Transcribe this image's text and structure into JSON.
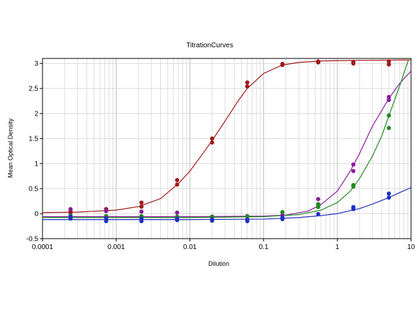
{
  "chart_data": {
    "type": "scatter",
    "title": "TitrationCurves",
    "xlabel": "Dilution",
    "ylabel": "Mean Optical Density",
    "x_scale": "log",
    "xlim": [
      0.0001,
      10
    ],
    "ylim": [
      -0.5,
      3.1
    ],
    "x_ticks": [
      {
        "value": 0.0001,
        "label": "0.0001"
      },
      {
        "value": 0.001,
        "label": "0.001"
      },
      {
        "value": 0.01,
        "label": "0.01"
      },
      {
        "value": 0.1,
        "label": "0.1"
      },
      {
        "value": 1,
        "label": "1"
      },
      {
        "value": 10,
        "label": "10"
      }
    ],
    "y_ticks": [
      {
        "value": -0.5,
        "label": "-0.5"
      },
      {
        "value": 0,
        "label": "0"
      },
      {
        "value": 0.5,
        "label": "0.5"
      },
      {
        "value": 1,
        "label": "1"
      },
      {
        "value": 1.5,
        "label": "1.5"
      },
      {
        "value": 2,
        "label": "2"
      },
      {
        "value": 2.5,
        "label": "2.5"
      },
      {
        "value": 3,
        "label": "3"
      }
    ],
    "grid": true,
    "series": [
      {
        "color": "#a01818",
        "points": [
          [
            0.00024,
            0.02
          ],
          [
            0.00024,
            0.05
          ],
          [
            0.00073,
            0.05
          ],
          [
            0.00073,
            0.09
          ],
          [
            0.0022,
            0.14
          ],
          [
            0.0022,
            0.22
          ],
          [
            0.0067,
            0.58
          ],
          [
            0.0067,
            0.67
          ],
          [
            0.02,
            1.42
          ],
          [
            0.02,
            1.5
          ],
          [
            0.06,
            2.54
          ],
          [
            0.06,
            2.62
          ],
          [
            0.18,
            2.97
          ],
          [
            0.18,
            2.99
          ],
          [
            0.55,
            3.02
          ],
          [
            0.55,
            3.04
          ],
          [
            1.65,
            3.0
          ],
          [
            1.65,
            3.03
          ],
          [
            5,
            2.98
          ],
          [
            5,
            3.04
          ]
        ],
        "curve": [
          [
            0.0001,
            0.02
          ],
          [
            0.0003,
            0.03
          ],
          [
            0.001,
            0.07
          ],
          [
            0.002,
            0.14
          ],
          [
            0.004,
            0.3
          ],
          [
            0.007,
            0.6
          ],
          [
            0.01,
            0.85
          ],
          [
            0.015,
            1.2
          ],
          [
            0.02,
            1.46
          ],
          [
            0.03,
            1.85
          ],
          [
            0.045,
            2.25
          ],
          [
            0.06,
            2.5
          ],
          [
            0.1,
            2.8
          ],
          [
            0.18,
            2.97
          ],
          [
            0.3,
            3.02
          ],
          [
            0.6,
            3.05
          ],
          [
            1.5,
            3.06
          ],
          [
            10,
            3.07
          ]
        ]
      },
      {
        "color": "#8b1a9c",
        "points": [
          [
            0.00024,
            0.09
          ],
          [
            0.00073,
            0.06
          ],
          [
            0.0022,
            0.04
          ],
          [
            0.0067,
            0.02
          ],
          [
            0.02,
            -0.06
          ],
          [
            0.06,
            -0.11
          ],
          [
            0.18,
            -0.03
          ],
          [
            0.55,
            0.17
          ],
          [
            0.55,
            0.29
          ],
          [
            1.65,
            0.85
          ],
          [
            1.65,
            0.98
          ],
          [
            5,
            2.27
          ],
          [
            5,
            2.33
          ]
        ],
        "curve": [
          [
            0.0001,
            -0.06
          ],
          [
            0.01,
            -0.06
          ],
          [
            0.1,
            -0.05
          ],
          [
            0.2,
            -0.03
          ],
          [
            0.4,
            0.05
          ],
          [
            0.6,
            0.18
          ],
          [
            1,
            0.45
          ],
          [
            1.5,
            0.85
          ],
          [
            2,
            1.2
          ],
          [
            3,
            1.75
          ],
          [
            5,
            2.3
          ],
          [
            7,
            2.6
          ],
          [
            10,
            2.85
          ]
        ]
      },
      {
        "color": "#1f8a1f",
        "points": [
          [
            0.00024,
            -0.04
          ],
          [
            0.00073,
            -0.05
          ],
          [
            0.0022,
            -0.05
          ],
          [
            0.0067,
            -0.06
          ],
          [
            0.02,
            -0.06
          ],
          [
            0.06,
            -0.05
          ],
          [
            0.18,
            0.03
          ],
          [
            0.55,
            0.13
          ],
          [
            0.55,
            0.19
          ],
          [
            1.65,
            0.54
          ],
          [
            1.65,
            0.57
          ],
          [
            5,
            1.71
          ],
          [
            5,
            1.96
          ]
        ],
        "curve": [
          [
            0.0001,
            -0.08
          ],
          [
            0.01,
            -0.08
          ],
          [
            0.1,
            -0.06
          ],
          [
            0.3,
            -0.02
          ],
          [
            0.6,
            0.07
          ],
          [
            1,
            0.22
          ],
          [
            1.5,
            0.45
          ],
          [
            2,
            0.7
          ],
          [
            3,
            1.15
          ],
          [
            4,
            1.55
          ],
          [
            5,
            1.95
          ],
          [
            7,
            2.55
          ],
          [
            9.2,
            3.07
          ]
        ]
      },
      {
        "color": "#1f2fbf",
        "points": [
          [
            0.00024,
            -0.06
          ],
          [
            0.00024,
            -0.1
          ],
          [
            0.00073,
            -0.09
          ],
          [
            0.00073,
            -0.15
          ],
          [
            0.0022,
            -0.1
          ],
          [
            0.0022,
            -0.15
          ],
          [
            0.0067,
            -0.1
          ],
          [
            0.0067,
            -0.13
          ],
          [
            0.02,
            -0.11
          ],
          [
            0.02,
            -0.14
          ],
          [
            0.06,
            -0.12
          ],
          [
            0.06,
            -0.15
          ],
          [
            0.18,
            -0.08
          ],
          [
            0.18,
            -0.11
          ],
          [
            0.55,
            -0.01
          ],
          [
            1.65,
            0.09
          ],
          [
            1.65,
            0.13
          ],
          [
            5,
            0.32
          ],
          [
            5,
            0.4
          ]
        ],
        "curve": [
          [
            0.0001,
            -0.12
          ],
          [
            0.01,
            -0.12
          ],
          [
            0.1,
            -0.11
          ],
          [
            0.3,
            -0.08
          ],
          [
            0.6,
            -0.04
          ],
          [
            1,
            0.0
          ],
          [
            2,
            0.1
          ],
          [
            3,
            0.19
          ],
          [
            5,
            0.32
          ],
          [
            7,
            0.42
          ],
          [
            10,
            0.52
          ]
        ]
      }
    ]
  }
}
